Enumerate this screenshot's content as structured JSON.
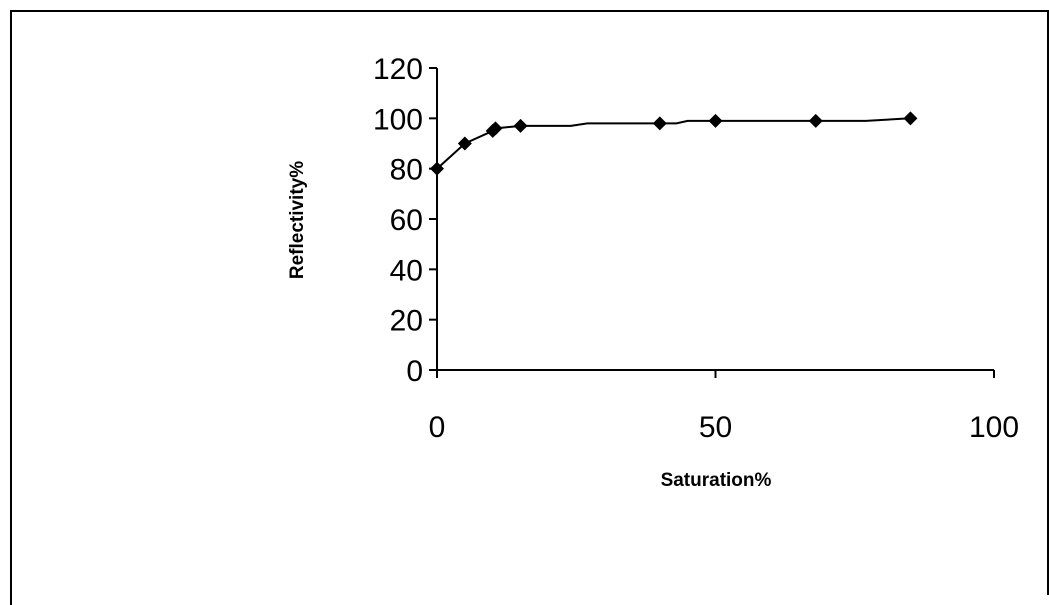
{
  "chart_data": {
    "type": "line",
    "title": "",
    "xlabel": "Saturation%",
    "ylabel": "Reflectivity%",
    "xlim": [
      0,
      100
    ],
    "ylim": [
      0,
      120
    ],
    "x_ticks": [
      0,
      50,
      100
    ],
    "y_ticks": [
      0,
      20,
      40,
      60,
      80,
      100,
      120
    ],
    "grid": false,
    "legend": "none",
    "series": [
      {
        "color": "#000000",
        "marker": "diamond",
        "points": [
          {
            "x": 0,
            "y": 80
          },
          {
            "x": 5,
            "y": 90
          },
          {
            "x": 10,
            "y": 95
          },
          {
            "x": 10.5,
            "y": 96
          },
          {
            "x": 15,
            "y": 97
          },
          {
            "x": 40,
            "y": 98
          },
          {
            "x": 50,
            "y": 99
          },
          {
            "x": 68,
            "y": 99
          },
          {
            "x": 85,
            "y": 100
          }
        ],
        "line": [
          {
            "x": 0,
            "y": 80
          },
          {
            "x": 5,
            "y": 90
          },
          {
            "x": 10,
            "y": 95
          },
          {
            "x": 10.5,
            "y": 96
          },
          {
            "x": 15,
            "y": 97
          },
          {
            "x": 24,
            "y": 97
          },
          {
            "x": 27,
            "y": 98
          },
          {
            "x": 40,
            "y": 98
          },
          {
            "x": 43,
            "y": 98
          },
          {
            "x": 45,
            "y": 99
          },
          {
            "x": 50,
            "y": 99
          },
          {
            "x": 68,
            "y": 99
          },
          {
            "x": 77,
            "y": 99
          },
          {
            "x": 85,
            "y": 100
          }
        ]
      }
    ]
  }
}
